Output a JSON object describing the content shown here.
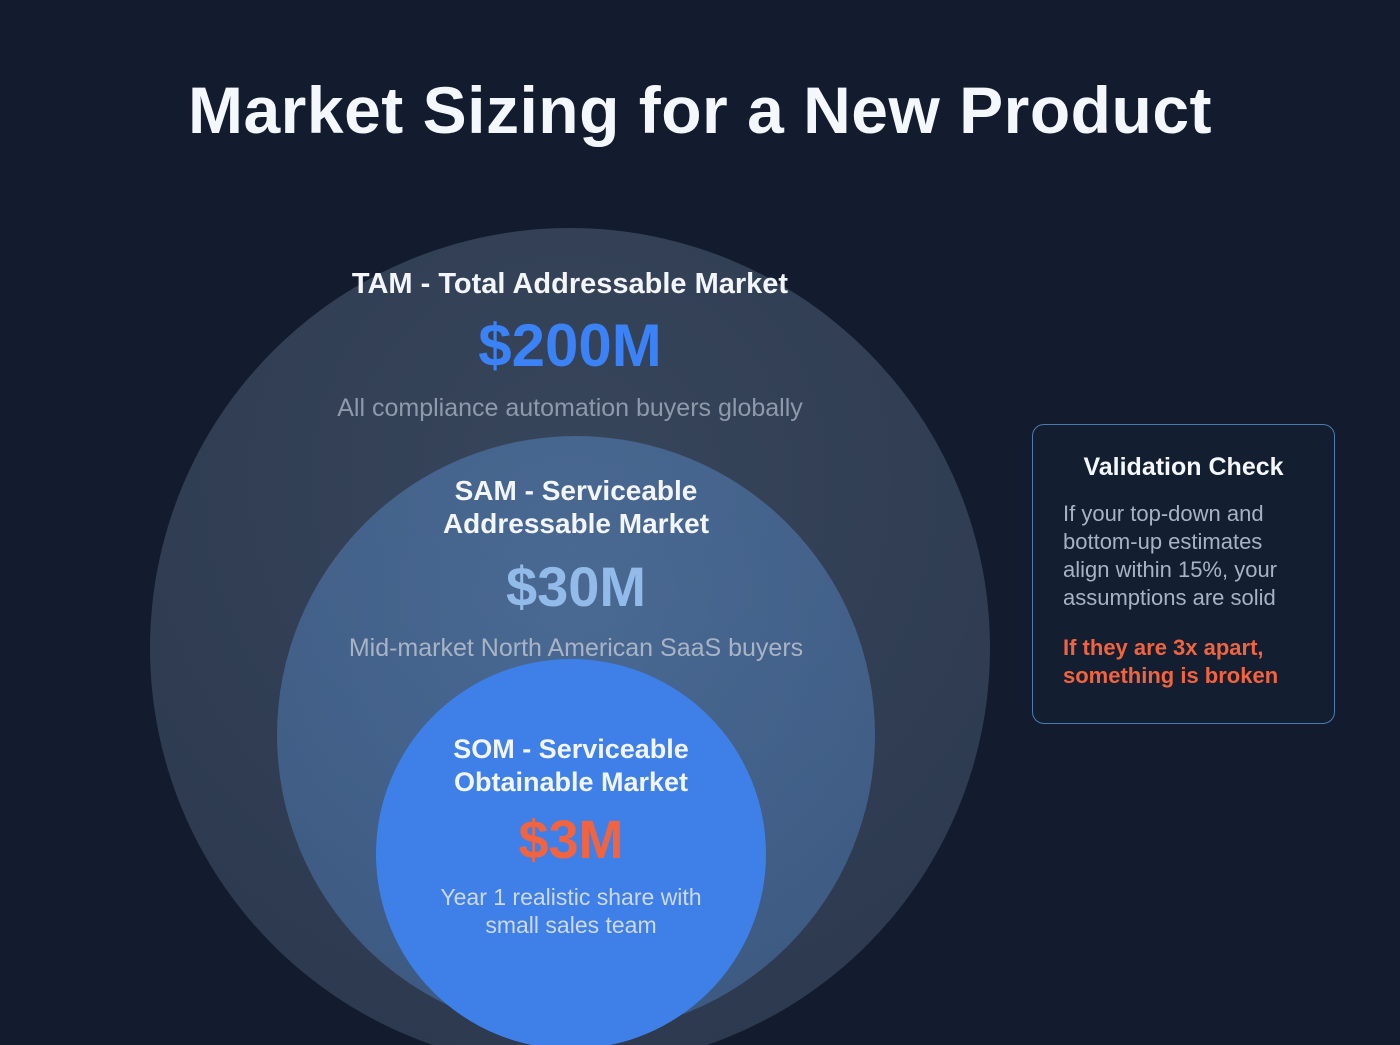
{
  "page": {
    "title": "Market Sizing for a New Product"
  },
  "diagram": {
    "type": "nested-circles",
    "levels": [
      {
        "id": "tam",
        "label": "TAM - Total Addressable Market",
        "value": "$200M",
        "description": "All compliance automation buyers globally",
        "value_color": "#3b82f6"
      },
      {
        "id": "sam",
        "label": "SAM - Serviceable Addressable Market",
        "value": "$30M",
        "description": "Mid-market North American SaaS buyers",
        "value_color": "#93bbe9"
      },
      {
        "id": "som",
        "label": "SOM - Serviceable Obtainable Market",
        "value": "$3M",
        "description": "Year 1 realistic share with small sales team",
        "value_color": "#f2633f",
        "circle_color": "#3f80e8"
      }
    ]
  },
  "validation": {
    "title": "Validation Check",
    "body": "If your top-down and bottom-up estimates align within 15%, your assumptions are solid",
    "warning": "If they are 3x apart, something is broken"
  },
  "colors": {
    "background": "#131c2f",
    "accent_blue": "#3b82f6",
    "light_blue": "#93bbe9",
    "accent_orange": "#f2633f",
    "card_border": "#4a7cb0"
  }
}
